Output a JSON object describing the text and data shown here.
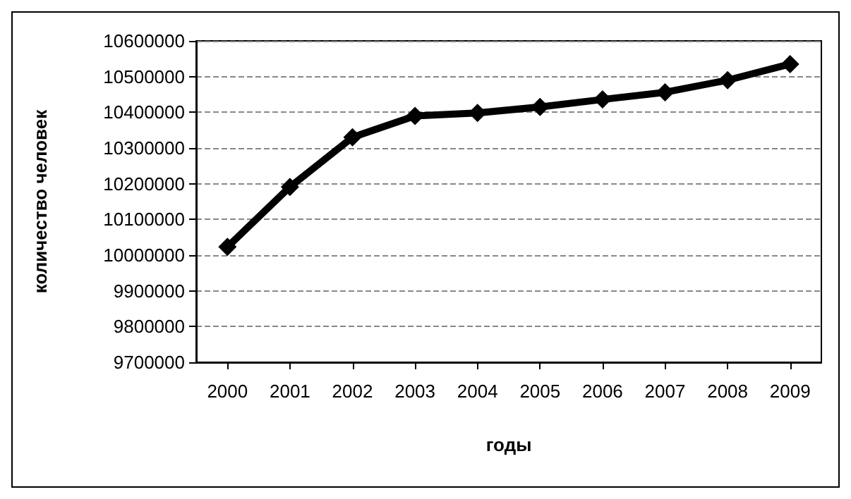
{
  "chart_data": {
    "type": "line",
    "xlabel": "годы",
    "ylabel": "количество человек",
    "categories": [
      "2000",
      "2001",
      "2002",
      "2003",
      "2004",
      "2005",
      "2006",
      "2007",
      "2008",
      "2009"
    ],
    "series": [
      {
        "color": "#000000",
        "values": [
          10023000,
          10191000,
          10330000,
          10390000,
          10398000,
          10415000,
          10436000,
          10456000,
          10490000,
          10535000
        ]
      }
    ],
    "ylim": [
      9700000,
      10600000
    ],
    "yticks": [
      9700000,
      9800000,
      9900000,
      10000000,
      10100000,
      10200000,
      10300000,
      10400000,
      10500000,
      10600000
    ],
    "grid": "y",
    "marker": "diamond",
    "line_style": "solid"
  }
}
